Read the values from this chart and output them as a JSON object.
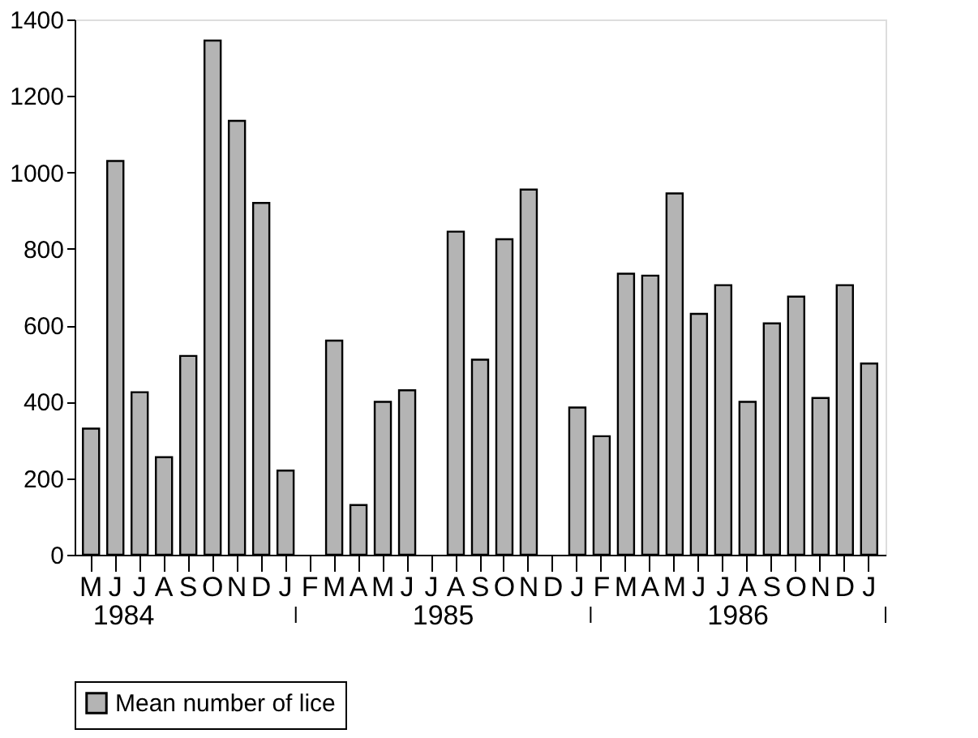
{
  "chart_data": {
    "type": "bar",
    "categories": [
      "M",
      "J",
      "J",
      "A",
      "S",
      "O",
      "N",
      "D",
      "J",
      "F",
      "M",
      "A",
      "M",
      "J",
      "J",
      "A",
      "S",
      "O",
      "N",
      "D",
      "J",
      "F",
      "M",
      "A",
      "M",
      "J",
      "J",
      "A",
      "S",
      "O",
      "N",
      "D",
      "J"
    ],
    "series": [
      {
        "name": "Mean number of lice",
        "color": "#b4b4b4",
        "values": [
          330,
          1030,
          425,
          255,
          520,
          1345,
          1135,
          920,
          220,
          null,
          560,
          130,
          400,
          430,
          null,
          845,
          510,
          825,
          955,
          null,
          385,
          310,
          735,
          730,
          945,
          630,
          705,
          400,
          605,
          675,
          410,
          705,
          500
        ]
      }
    ],
    "ylim": [
      0,
      1400
    ],
    "yticks": [
      0,
      200,
      400,
      600,
      800,
      1000,
      1200,
      1400
    ],
    "annotations": [
      "1984",
      "1985",
      "1986"
    ],
    "legend": "bottom",
    "grid": false
  }
}
